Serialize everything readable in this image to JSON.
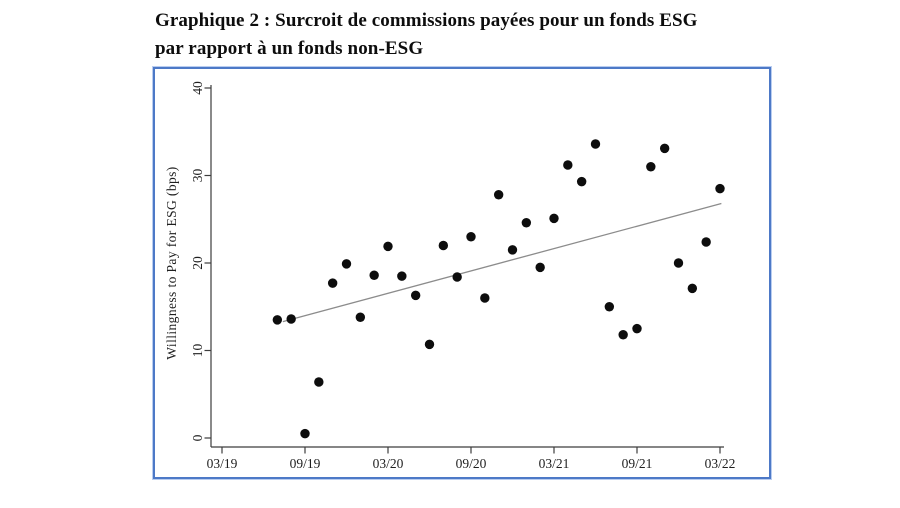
{
  "chart_data": {
    "type": "scatter",
    "title": "Graphique 2 : Surcroit de commissions payées pour un fonds ESG par rapport à un fonds non-ESG",
    "title_lines": [
      "Graphique 2 : Surcroit de commissions payées pour un fonds ESG",
      "par rapport à un fonds non-ESG"
    ],
    "xlabel": "",
    "ylabel": "Willingness to Pay for ESG (bps)",
    "ylim": [
      0,
      40
    ],
    "y_ticks": [
      0,
      10,
      20,
      30,
      40
    ],
    "x_tick_labels": [
      "03/19",
      "09/19",
      "03/20",
      "09/20",
      "03/21",
      "09/21",
      "03/22"
    ],
    "x_tick_months": [
      0,
      6,
      12,
      18,
      24,
      30,
      36
    ],
    "x_range_months": [
      0,
      36
    ],
    "grid": "off",
    "legend": "none",
    "points": {
      "month_labels": [
        "07/19",
        "08/19",
        "09/19",
        "10/19",
        "11/19",
        "12/19",
        "01/20",
        "02/20",
        "03/20",
        "04/20",
        "05/20",
        "06/20",
        "07/20",
        "08/20",
        "09/20",
        "10/20",
        "11/20",
        "12/20",
        "01/21",
        "02/21",
        "03/21",
        "04/21",
        "05/21",
        "06/21",
        "07/21",
        "08/21",
        "09/21",
        "10/21",
        "11/21",
        "12/21",
        "01/22",
        "02/22",
        "03/22"
      ],
      "month_index": [
        4,
        5,
        6,
        7,
        8,
        9,
        10,
        11,
        12,
        13,
        14,
        15,
        16,
        17,
        18,
        19,
        20,
        21,
        22,
        23,
        24,
        25,
        26,
        27,
        28,
        29,
        30,
        31,
        32,
        33,
        34,
        35,
        36
      ],
      "wtp_bps": [
        13.5,
        13.6,
        0.5,
        6.4,
        17.7,
        19.9,
        13.8,
        18.6,
        21.9,
        18.5,
        16.3,
        10.7,
        22.0,
        18.4,
        23.0,
        16.0,
        27.8,
        21.5,
        24.6,
        19.5,
        25.1,
        31.2,
        29.3,
        33.6,
        15.0,
        11.8,
        12.5,
        31.0,
        33.1,
        20.0,
        17.1,
        22.4,
        28.5
      ]
    },
    "trend_line": {
      "x1_month": 4.4,
      "v1": 13.3,
      "x2_month": 36.1,
      "v2": 26.8
    },
    "colors": {
      "point": "#0d0d0d",
      "trend": "#8c8c8c",
      "axis": "#3d3d3d",
      "frame_border": "#4d79c7",
      "tick_label": "#1f1f1f"
    }
  }
}
